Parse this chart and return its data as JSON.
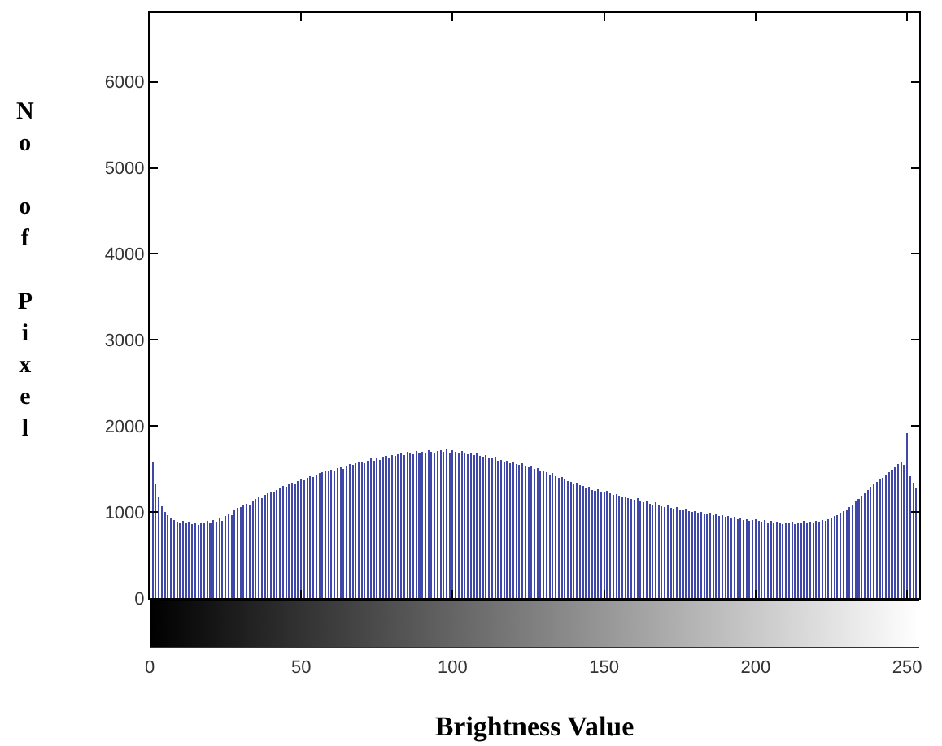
{
  "chart_data": {
    "type": "bar",
    "xlabel": "Brightness Value",
    "ylabel": "No of Pixel",
    "color": "#3f48a8",
    "grid": false,
    "x": [
      0,
      1,
      2,
      3,
      4,
      5,
      6,
      7,
      8,
      9,
      10,
      11,
      12,
      13,
      14,
      15,
      16,
      17,
      18,
      19,
      20,
      21,
      22,
      23,
      24,
      25,
      26,
      27,
      28,
      29,
      30,
      31,
      32,
      33,
      34,
      35,
      36,
      37,
      38,
      39,
      40,
      41,
      42,
      43,
      44,
      45,
      46,
      47,
      48,
      49,
      50,
      51,
      52,
      53,
      54,
      55,
      56,
      57,
      58,
      59,
      60,
      61,
      62,
      63,
      64,
      65,
      66,
      67,
      68,
      69,
      70,
      71,
      72,
      73,
      74,
      75,
      76,
      77,
      78,
      79,
      80,
      81,
      82,
      83,
      84,
      85,
      86,
      87,
      88,
      89,
      90,
      91,
      92,
      93,
      94,
      95,
      96,
      97,
      98,
      99,
      100,
      101,
      102,
      103,
      104,
      105,
      106,
      107,
      108,
      109,
      110,
      111,
      112,
      113,
      114,
      115,
      116,
      117,
      118,
      119,
      120,
      121,
      122,
      123,
      124,
      125,
      126,
      127,
      128,
      129,
      130,
      131,
      132,
      133,
      134,
      135,
      136,
      137,
      138,
      139,
      140,
      141,
      142,
      143,
      144,
      145,
      146,
      147,
      148,
      149,
      150,
      151,
      152,
      153,
      154,
      155,
      156,
      157,
      158,
      159,
      160,
      161,
      162,
      163,
      164,
      165,
      166,
      167,
      168,
      169,
      170,
      171,
      172,
      173,
      174,
      175,
      176,
      177,
      178,
      179,
      180,
      181,
      182,
      183,
      184,
      185,
      186,
      187,
      188,
      189,
      190,
      191,
      192,
      193,
      194,
      195,
      196,
      197,
      198,
      199,
      200,
      201,
      202,
      203,
      204,
      205,
      206,
      207,
      208,
      209,
      210,
      211,
      212,
      213,
      214,
      215,
      216,
      217,
      218,
      219,
      220,
      221,
      222,
      223,
      224,
      225,
      226,
      227,
      228,
      229,
      230,
      231,
      232,
      233,
      234,
      235,
      236,
      237,
      238,
      239,
      240,
      241,
      242,
      243,
      244,
      245,
      246,
      247,
      248,
      249,
      250,
      251,
      252,
      253
    ],
    "values": [
      1830,
      1580,
      1330,
      1180,
      1070,
      1000,
      960,
      930,
      910,
      890,
      880,
      900,
      870,
      890,
      860,
      880,
      850,
      880,
      870,
      900,
      880,
      910,
      890,
      930,
      900,
      950,
      980,
      960,
      1020,
      1050,
      1060,
      1080,
      1100,
      1090,
      1130,
      1150,
      1170,
      1160,
      1200,
      1220,
      1240,
      1230,
      1260,
      1280,
      1300,
      1290,
      1320,
      1340,
      1330,
      1360,
      1380,
      1370,
      1400,
      1420,
      1410,
      1440,
      1450,
      1460,
      1480,
      1470,
      1490,
      1480,
      1510,
      1520,
      1500,
      1540,
      1560,
      1550,
      1570,
      1580,
      1590,
      1570,
      1600,
      1620,
      1600,
      1630,
      1610,
      1640,
      1650,
      1630,
      1660,
      1650,
      1670,
      1680,
      1660,
      1700,
      1690,
      1670,
      1710,
      1680,
      1700,
      1690,
      1720,
      1700,
      1680,
      1710,
      1720,
      1700,
      1730,
      1690,
      1720,
      1700,
      1680,
      1710,
      1690,
      1670,
      1690,
      1660,
      1680,
      1650,
      1640,
      1660,
      1630,
      1620,
      1640,
      1600,
      1610,
      1590,
      1600,
      1570,
      1580,
      1560,
      1550,
      1570,
      1540,
      1520,
      1530,
      1500,
      1510,
      1480,
      1470,
      1460,
      1440,
      1450,
      1420,
      1400,
      1410,
      1380,
      1360,
      1350,
      1330,
      1340,
      1310,
      1300,
      1280,
      1290,
      1260,
      1250,
      1270,
      1240,
      1230,
      1250,
      1220,
      1200,
      1210,
      1190,
      1180,
      1170,
      1160,
      1150,
      1140,
      1160,
      1130,
      1110,
      1120,
      1100,
      1090,
      1110,
      1080,
      1070,
      1060,
      1080,
      1050,
      1040,
      1060,
      1030,
      1020,
      1040,
      1010,
      1000,
      1010,
      990,
      1000,
      980,
      970,
      990,
      960,
      970,
      950,
      960,
      940,
      950,
      930,
      940,
      920,
      930,
      910,
      920,
      900,
      910,
      920,
      900,
      890,
      910,
      880,
      900,
      870,
      890,
      880,
      860,
      880,
      870,
      890,
      860,
      880,
      870,
      900,
      880,
      890,
      870,
      900,
      890,
      910,
      900,
      920,
      930,
      950,
      960,
      990,
      1010,
      1030,
      1060,
      1090,
      1120,
      1150,
      1190,
      1220,
      1260,
      1290,
      1320,
      1350,
      1380,
      1400,
      1430,
      1460,
      1490,
      1520,
      1560,
      1590,
      1550,
      1920,
      1420,
      1340,
      1280
    ],
    "xlim": [
      0,
      254
    ],
    "xticks": [
      0,
      50,
      100,
      150,
      200,
      250
    ],
    "ylim": [
      0,
      6800
    ],
    "yticks": [
      0,
      1000,
      2000,
      3000,
      4000,
      5000,
      6000
    ]
  }
}
